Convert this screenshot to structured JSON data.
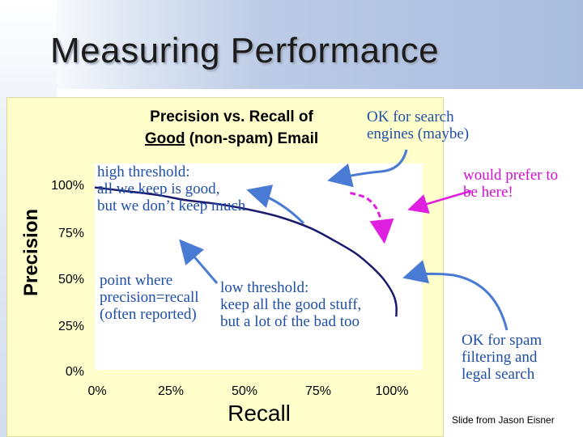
{
  "slide": {
    "title": "Measuring Performance",
    "credit": "Slide from Jason Eisner"
  },
  "colors": {
    "curve": "#1a1a6e",
    "arrow_blue": "#4a7bd4",
    "ideal_curve": "#e020e0",
    "text_blue": "#1f4fa8",
    "text_magenta": "#d010d0",
    "plot_bg": "#ffffff",
    "panel_bg": "#ffffcc"
  },
  "annotations": {
    "high_threshold": "high threshold:\nall we keep is good,\nbut we don’t keep much",
    "point_where": "point where\nprecision=recall\n(often reported)",
    "low_threshold": "low threshold:\nkeep all the good stuff,\nbut a lot of the bad too",
    "ok_search": "OK for search\nengines (maybe)",
    "prefer_here": "would prefer to\nbe here!",
    "ok_spam": "OK for spam\nfiltering and\nlegal search"
  },
  "chart_data": {
    "type": "line",
    "title_line1": "Precision vs. Recall of",
    "title_line2_underlined": "Good",
    "title_line2_rest": " (non-spam) Email",
    "xlabel": "Recall",
    "ylabel": "Precision",
    "x_ticks": [
      "0%",
      "25%",
      "50%",
      "75%",
      "100%"
    ],
    "y_ticks": [
      "100%",
      "75%",
      "50%",
      "25%",
      "0%"
    ],
    "xlim": [
      0,
      100
    ],
    "ylim": [
      0,
      100
    ],
    "grid": false,
    "series": [
      {
        "x": [
          0,
          10,
          20,
          30,
          40,
          50,
          60,
          70,
          78,
          85,
          90,
          94,
          97,
          98,
          98
        ],
        "y": [
          98,
          96,
          94,
          91,
          89,
          86,
          82,
          76,
          69,
          62,
          55,
          48,
          40,
          34,
          28
        ]
      }
    ],
    "ideal_series": {
      "x": [
        83,
        88,
        91,
        92.5,
        93.5,
        94
      ],
      "y": [
        95,
        92.5,
        88,
        83,
        77,
        70
      ]
    }
  }
}
